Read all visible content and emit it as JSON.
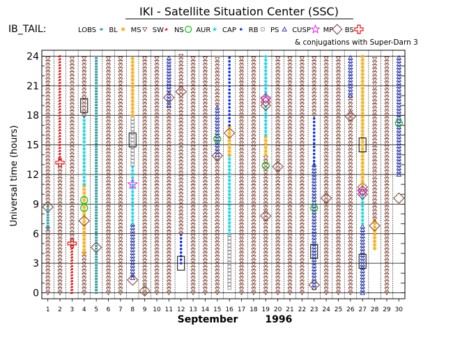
{
  "header": {
    "title": "IKI - Satellite Situation Center (SSC)",
    "panel_label": "IB_TAIL:",
    "legend_note": "& conjugations with Super-Darn 3"
  },
  "legend": [
    {
      "key": "LOBS",
      "symbol": "square-small",
      "color": "#3a9ca6"
    },
    {
      "key": "BL",
      "symbol": "asterisk",
      "color": "#f0b020"
    },
    {
      "key": "MS",
      "symbol": "triangle-down",
      "color": "#7a3b2e"
    },
    {
      "key": "SW",
      "symbol": "dot-spray",
      "color": "#e01010"
    },
    {
      "key": "NS",
      "symbol": "circle",
      "color": "#20c020"
    },
    {
      "key": "AUR",
      "symbol": "star-filled",
      "color": "#20d0e0"
    },
    {
      "key": "CAP",
      "symbol": "dot",
      "color": "#1030e0"
    },
    {
      "key": "RB",
      "symbol": "square-open",
      "color": "#808080"
    },
    {
      "key": "PS",
      "symbol": "triangle-up",
      "color": "#1020a0"
    },
    {
      "key": "CUSP",
      "symbol": "star-open",
      "color": "#e020e0"
    },
    {
      "key": "MP",
      "symbol": "diamond",
      "color": "#7a3b2e"
    },
    {
      "key": "BS",
      "symbol": "cross",
      "color": "#e01010"
    }
  ],
  "chart_data": {
    "type": "scatter",
    "title": "IKI - Satellite Situation Center (SSC)",
    "xlabel": "September        1996",
    "ylabel": "Universal time (hours)",
    "x_ticks": [
      1,
      2,
      3,
      4,
      5,
      6,
      7,
      8,
      9,
      10,
      11,
      12,
      13,
      14,
      15,
      16,
      17,
      18,
      19,
      20,
      21,
      22,
      23,
      24,
      25,
      26,
      27,
      28,
      29,
      30
    ],
    "y_ticks": [
      0,
      3,
      6,
      9,
      12,
      15,
      18,
      21,
      24
    ],
    "xlim": [
      0.5,
      30.5
    ],
    "ylim": [
      -0.6,
      24.6
    ],
    "series_intervals": [
      {
        "day": 1,
        "segments": [
          [
            "MS",
            0,
            6.5
          ],
          [
            "LOBS",
            6.5,
            9
          ],
          [
            "MS",
            9,
            24
          ]
        ]
      },
      {
        "day": 2,
        "segments": [
          [
            "MS",
            0,
            13
          ],
          [
            "SW",
            13.5,
            24
          ]
        ]
      },
      {
        "day": 3,
        "segments": [
          [
            "SW",
            0,
            5
          ],
          [
            "MS",
            5,
            24
          ]
        ]
      },
      {
        "day": 4,
        "segments": [
          [
            "MS",
            0,
            4
          ],
          [
            "BL",
            4,
            11
          ],
          [
            "AUR",
            11,
            18
          ],
          [
            "MS",
            18,
            24
          ]
        ]
      },
      {
        "day": 5,
        "segments": [
          [
            "LOBS",
            0,
            24
          ]
        ]
      },
      {
        "day": 6,
        "segments": [
          [
            "MS",
            0,
            24
          ]
        ]
      },
      {
        "day": 7,
        "segments": [
          [
            "MS",
            0,
            24
          ]
        ]
      },
      {
        "day": 8,
        "segments": [
          [
            "PS",
            1.5,
            7
          ],
          [
            "AUR",
            7,
            13
          ],
          [
            "RB",
            13,
            18
          ],
          [
            "BL",
            18,
            24
          ]
        ]
      },
      {
        "day": 9,
        "segments": [
          [
            "MS",
            0,
            24
          ]
        ]
      },
      {
        "day": 10,
        "segments": [
          [
            "MS",
            0,
            24
          ]
        ]
      },
      {
        "day": 11,
        "segments": [
          [
            "MS",
            0,
            19
          ],
          [
            "PS",
            19,
            24
          ]
        ]
      },
      {
        "day": 12,
        "segments": [
          [
            "CAP",
            3,
            6
          ],
          [
            "MS",
            6,
            24
          ]
        ]
      },
      {
        "day": 13,
        "segments": [
          [
            "MS",
            0,
            24
          ]
        ]
      },
      {
        "day": 14,
        "segments": [
          [
            "MS",
            0,
            24
          ]
        ]
      },
      {
        "day": 15,
        "segments": [
          [
            "MS",
            0,
            14
          ],
          [
            "PS",
            14,
            19
          ],
          [
            "MS",
            19,
            24
          ]
        ]
      },
      {
        "day": 16,
        "segments": [
          [
            "RB",
            0.5,
            6
          ],
          [
            "AUR",
            6,
            14
          ],
          [
            "BL",
            14,
            17
          ],
          [
            "CAP",
            17,
            24
          ]
        ]
      },
      {
        "day": 17,
        "segments": [
          [
            "MS",
            0,
            24
          ]
        ]
      },
      {
        "day": 18,
        "segments": [
          [
            "MS",
            0,
            24
          ]
        ]
      },
      {
        "day": 19,
        "segments": [
          [
            "MS",
            0,
            14
          ],
          [
            "BL",
            14,
            16
          ],
          [
            "AUR",
            16,
            19
          ],
          [
            "MP",
            19,
            20
          ],
          [
            "AUR",
            20,
            24
          ]
        ]
      },
      {
        "day": 20,
        "segments": [
          [
            "MS",
            0,
            24
          ]
        ]
      },
      {
        "day": 21,
        "segments": [
          [
            "MS",
            0,
            24
          ]
        ]
      },
      {
        "day": 22,
        "segments": [
          [
            "MS",
            0,
            24
          ]
        ]
      },
      {
        "day": 23,
        "segments": [
          [
            "PS",
            0.5,
            13
          ],
          [
            "CAP",
            13,
            18
          ],
          [
            "MS",
            18,
            24
          ]
        ]
      },
      {
        "day": 24,
        "segments": [
          [
            "MS",
            0,
            24
          ]
        ]
      },
      {
        "day": 25,
        "segments": [
          [
            "MS",
            0,
            24
          ]
        ]
      },
      {
        "day": 26,
        "segments": [
          [
            "MS",
            0,
            20
          ],
          [
            "PS",
            20,
            24
          ]
        ]
      },
      {
        "day": 27,
        "segments": [
          [
            "PS",
            0,
            7
          ],
          [
            "AUR",
            7,
            10
          ],
          [
            "MP",
            10,
            11
          ],
          [
            "BL",
            11,
            24
          ]
        ]
      },
      {
        "day": 28,
        "segments": [
          [
            "BL",
            4.5,
            7.5
          ],
          [
            "MS",
            7.5,
            24
          ]
        ]
      },
      {
        "day": 29,
        "segments": [
          [
            "MS",
            0,
            24
          ]
        ]
      },
      {
        "day": 30,
        "segments": [
          [
            "PS",
            12,
            24
          ]
        ]
      }
    ],
    "conjunctions": [
      {
        "day": 1,
        "type": "diamond",
        "time": 8.7
      },
      {
        "day": 2,
        "type": "cross",
        "time": 13.2
      },
      {
        "day": 3,
        "type": "cross",
        "time": 5
      },
      {
        "day": 4,
        "type": "diamond",
        "time": 7.3
      },
      {
        "day": 4,
        "type": "circle",
        "time": 8.6
      },
      {
        "day": 4,
        "type": "circle",
        "time": 9.4
      },
      {
        "day": 4,
        "type": "box",
        "time": 19.0
      },
      {
        "day": 5,
        "type": "diamond",
        "time": 4.6
      },
      {
        "day": 8,
        "type": "diamond",
        "time": 1.3
      },
      {
        "day": 8,
        "type": "star",
        "time": 11.0
      },
      {
        "day": 8,
        "type": "box",
        "time": 15.5
      },
      {
        "day": 9,
        "type": "diamond",
        "time": 0.2
      },
      {
        "day": 11,
        "type": "diamond",
        "time": 19.8
      },
      {
        "day": 12,
        "type": "diamond",
        "time": 20.4
      },
      {
        "day": 12,
        "type": "box",
        "time": 3.0
      },
      {
        "day": 15,
        "type": "diamond",
        "time": 13.9
      },
      {
        "day": 15,
        "type": "circle",
        "time": 15.6
      },
      {
        "day": 16,
        "type": "diamond",
        "time": 16.2
      },
      {
        "day": 19,
        "type": "diamond",
        "time": 7.8
      },
      {
        "day": 19,
        "type": "circle",
        "time": 12.9
      },
      {
        "day": 19,
        "type": "star",
        "time": 19.7
      },
      {
        "day": 20,
        "type": "diamond",
        "time": 12.8
      },
      {
        "day": 23,
        "type": "diamond",
        "time": 0.8
      },
      {
        "day": 23,
        "type": "circle",
        "time": 8.6
      },
      {
        "day": 23,
        "type": "box",
        "time": 4.2
      },
      {
        "day": 24,
        "type": "diamond",
        "time": 9.6
      },
      {
        "day": 26,
        "type": "diamond",
        "time": 17.9
      },
      {
        "day": 27,
        "type": "star",
        "time": 10.3
      },
      {
        "day": 27,
        "type": "box",
        "time": 3.2
      },
      {
        "day": 27,
        "type": "box",
        "time": 15.0
      },
      {
        "day": 28,
        "type": "diamond",
        "time": 6.8
      },
      {
        "day": 30,
        "type": "diamond",
        "time": 9.6
      },
      {
        "day": 30,
        "type": "circle",
        "time": 17.2
      }
    ],
    "grid": true
  }
}
